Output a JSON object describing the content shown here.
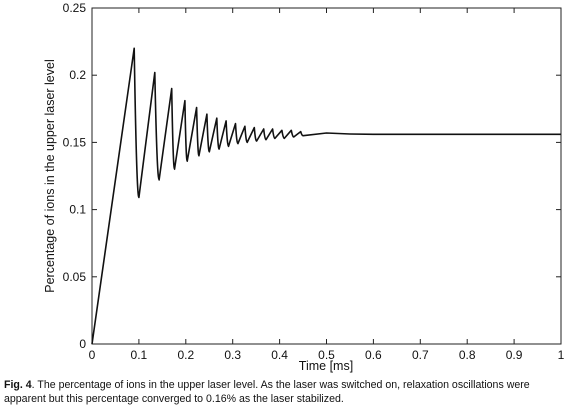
{
  "chart_data": {
    "type": "line",
    "title": "",
    "xlabel": "Time [ms]",
    "ylabel": "Percentage of ions in the upper laser level",
    "xlim": [
      0,
      1
    ],
    "ylim": [
      0,
      0.25
    ],
    "xticks": [
      "0",
      "0.1",
      "0.2",
      "0.3",
      "0.4",
      "0.5",
      "0.6",
      "0.7",
      "0.8",
      "0.9",
      "1"
    ],
    "yticks": [
      "0",
      "0.05",
      "0.1",
      "0.15",
      "0.2",
      "0.25"
    ],
    "grid": false,
    "legend": "none",
    "series": [
      {
        "name": "",
        "color": "#111111",
        "x": [
          0,
          0.09,
          0.1,
          0.134,
          0.143,
          0.17,
          0.176,
          0.198,
          0.203,
          0.223,
          0.228,
          0.245,
          0.25,
          0.266,
          0.271,
          0.286,
          0.291,
          0.306,
          0.311,
          0.326,
          0.331,
          0.346,
          0.351,
          0.366,
          0.371,
          0.385,
          0.39,
          0.405,
          0.41,
          0.425,
          0.43,
          0.445,
          0.45,
          0.5,
          0.6,
          0.7,
          0.8,
          0.9,
          1.0
        ],
        "y": [
          0,
          0.22,
          0.109,
          0.202,
          0.122,
          0.19,
          0.13,
          0.181,
          0.136,
          0.176,
          0.14,
          0.171,
          0.143,
          0.168,
          0.145,
          0.166,
          0.147,
          0.164,
          0.149,
          0.162,
          0.15,
          0.161,
          0.151,
          0.16,
          0.152,
          0.16,
          0.153,
          0.159,
          0.153,
          0.159,
          0.154,
          0.158,
          0.155,
          0.157,
          0.156,
          0.156,
          0.156,
          0.156,
          0.156
        ]
      }
    ]
  },
  "caption": {
    "label": "Fig. 4",
    "text": ". The percentage of ions in the upper laser level. As the laser was switched on, relaxation oscillations were apparent but this percentage converged to 0.16% as the laser stabilized."
  }
}
